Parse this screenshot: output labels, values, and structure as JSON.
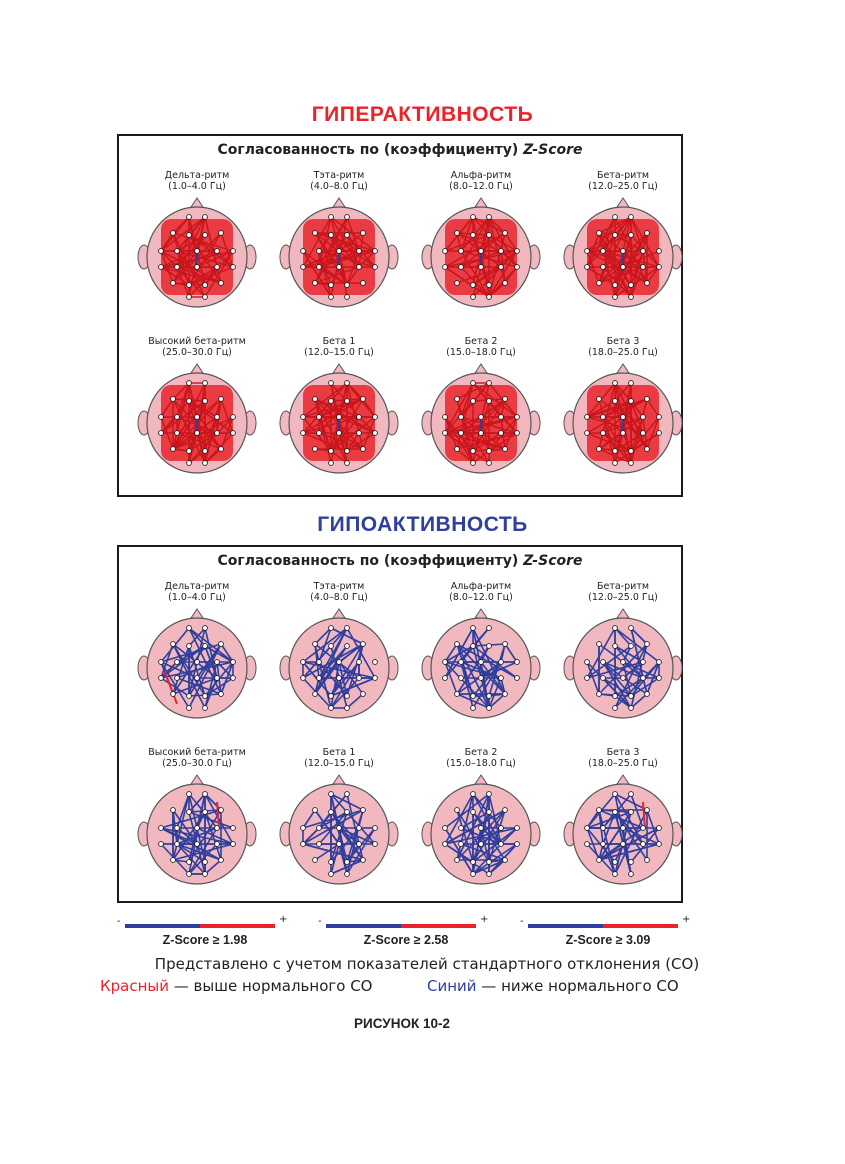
{
  "hyper_title": "ГИПЕРАКТИВНОСТЬ",
  "hypo_title": "ГИПОАКТИВНОСТЬ",
  "panel_heading_prefix": "Согласованность по (коэффициенту)",
  "panel_heading_italic": "Z-Score",
  "bands": [
    {
      "name": "Дельта-ритм",
      "range": "(1.0–4.0 Гц)"
    },
    {
      "name": "Тэта-ритм",
      "range": "(4.0–8.0 Гц)"
    },
    {
      "name": "Альфа-ритм",
      "range": "(8.0–12.0 Гц)"
    },
    {
      "name": "Бета-ритм",
      "range": "(12.0–25.0 Гц)"
    },
    {
      "name": "Высокий бета-ритм",
      "range": "(25.0–30.0 Гц)"
    },
    {
      "name": "Бета 1",
      "range": "(12.0–15.0 Гц)"
    },
    {
      "name": "Бета 2",
      "range": "(15.0–18.0 Гц)"
    },
    {
      "name": "Бета 3",
      "range": "(18.0–25.0 Гц)"
    }
  ],
  "legend": [
    {
      "label": "Z-Score ≥ 1.98",
      "minus": "-",
      "plus": "+"
    },
    {
      "label": "Z-Score ≥ 2.58",
      "minus": "-",
      "plus": "+"
    },
    {
      "label": "Z-Score ≥ 3.09",
      "minus": "-",
      "plus": "+"
    }
  ],
  "note_line1": "Представлено с учетом показателей стандартного отклонения (СО)",
  "note_red_word": "Красный",
  "note_red_rest": " — выше нормального СО",
  "note_blue_word": "Синий",
  "note_blue_rest": " — ниже нормального СО",
  "figure_caption": "РИСУНОК 10-2",
  "colors": {
    "red": "#e8242a",
    "blue": "#2f3f9e",
    "head": "#f2b8c0",
    "headStroke": "#555555"
  }
}
